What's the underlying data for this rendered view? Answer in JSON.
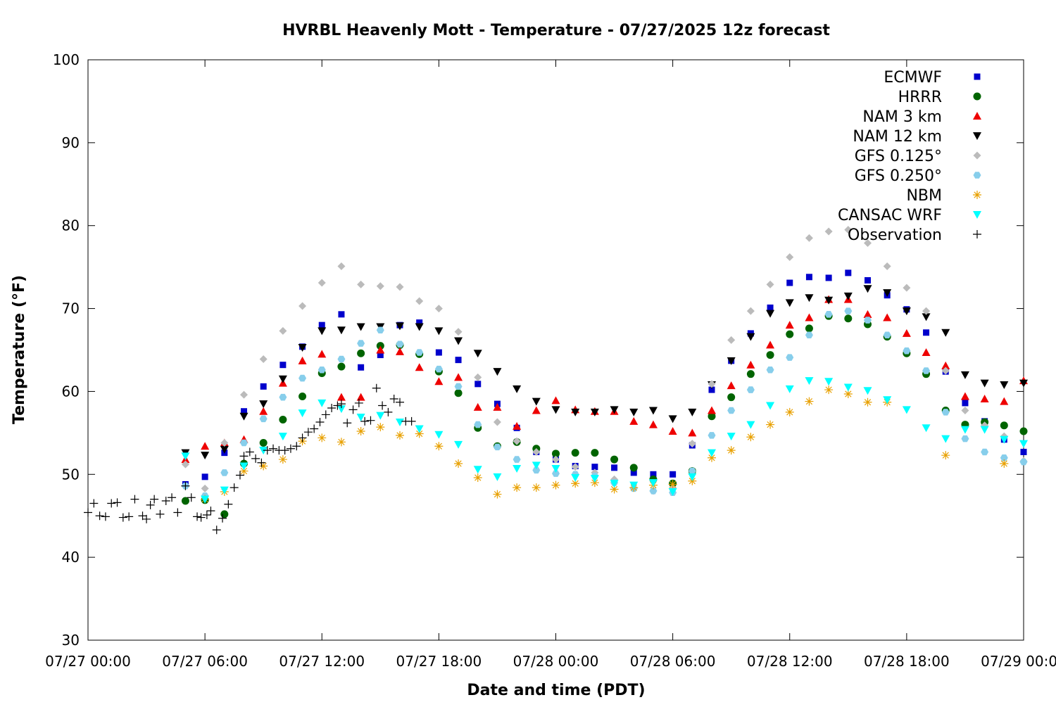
{
  "chart_data": {
    "type": "scatter",
    "title": "HVRBL Heavenly Mott - Temperature - 07/27/2025 12z forecast",
    "xlabel": "Date and time (PDT)",
    "ylabel": "Temperature (°F)",
    "xlim": [
      0,
      48
    ],
    "ylim": [
      30,
      100
    ],
    "x_units": "hours since 07/27 00:00 PDT",
    "x_ticks": [
      {
        "x": 0,
        "label": "07/27 00:00"
      },
      {
        "x": 6,
        "label": "07/27 06:00"
      },
      {
        "x": 12,
        "label": "07/27 12:00"
      },
      {
        "x": 18,
        "label": "07/27 18:00"
      },
      {
        "x": 24,
        "label": "07/28 00:00"
      },
      {
        "x": 30,
        "label": "07/28 06:00"
      },
      {
        "x": 36,
        "label": "07/28 12:00"
      },
      {
        "x": 42,
        "label": "07/28 18:00"
      },
      {
        "x": 48,
        "label": "07/29 00:00"
      }
    ],
    "y_ticks": [
      30,
      40,
      50,
      60,
      70,
      80,
      90,
      100
    ],
    "grid": false,
    "legend_position": "top-right",
    "series": [
      {
        "name": "ECMWF",
        "marker": "square",
        "color": "#0000cc",
        "x": [
          5,
          6,
          7,
          8,
          9,
          10,
          11,
          12,
          13,
          14,
          15,
          16,
          17,
          18,
          19,
          20,
          21,
          22,
          23,
          24,
          25,
          26,
          27,
          28,
          29,
          30,
          31,
          32,
          33,
          34,
          35,
          36,
          37,
          38,
          39,
          40,
          41,
          42,
          43,
          44,
          45,
          46,
          47,
          48
        ],
        "y": [
          48.8,
          49.7,
          52.6,
          57.6,
          60.6,
          63.2,
          65.4,
          68.0,
          69.3,
          62.9,
          64.4,
          68.0,
          68.3,
          64.7,
          63.8,
          60.9,
          58.5,
          55.6,
          52.7,
          51.8,
          51.0,
          50.9,
          50.8,
          50.2,
          50.0,
          50.0,
          53.5,
          60.2,
          63.7,
          67.0,
          70.1,
          73.1,
          73.8,
          73.7,
          74.3,
          73.4,
          71.6,
          69.9,
          67.1,
          62.4,
          58.6,
          56.4,
          54.2,
          52.7
        ]
      },
      {
        "name": "HRRR",
        "marker": "circle",
        "color": "#006400",
        "x": [
          5,
          6,
          7,
          8,
          9,
          10,
          11,
          12,
          13,
          14,
          15,
          16,
          17,
          18,
          19,
          20,
          21,
          22,
          23,
          24,
          25,
          26,
          27,
          28,
          29,
          30,
          31,
          32,
          33,
          34,
          35,
          36,
          37,
          38,
          39,
          40,
          41,
          42,
          43,
          44,
          45,
          46,
          47,
          48
        ],
        "y": [
          46.8,
          46.9,
          45.2,
          51.3,
          53.8,
          56.6,
          59.4,
          62.2,
          63.0,
          64.6,
          65.5,
          65.6,
          64.5,
          62.4,
          59.8,
          55.6,
          53.4,
          53.9,
          53.1,
          52.5,
          52.6,
          52.6,
          51.8,
          50.8,
          49.4,
          48.9,
          50.4,
          57.0,
          59.3,
          62.1,
          64.4,
          66.9,
          67.6,
          69.1,
          68.8,
          68.1,
          66.6,
          64.6,
          62.1,
          57.7,
          56.0,
          56.3,
          55.9,
          55.2
        ]
      },
      {
        "name": "NAM 3 km",
        "marker": "triangle-up",
        "color": "#ee0000",
        "x": [
          5,
          6,
          7,
          8,
          9,
          10,
          11,
          12,
          13,
          14,
          15,
          16,
          17,
          18,
          19,
          20,
          21,
          22,
          23,
          24,
          25,
          26,
          27,
          28,
          29,
          30,
          31,
          32,
          33,
          34,
          35,
          36,
          37,
          38,
          39,
          40,
          41,
          42,
          43,
          44,
          45,
          46,
          47,
          48
        ],
        "y": [
          51.8,
          53.4,
          53.8,
          54.2,
          57.6,
          61.0,
          63.7,
          64.5,
          59.3,
          59.3,
          65.0,
          64.8,
          62.9,
          61.2,
          61.7,
          58.1,
          58.1,
          55.8,
          57.7,
          58.9,
          57.8,
          57.6,
          57.6,
          56.4,
          56.0,
          55.2,
          55.0,
          57.7,
          60.7,
          63.2,
          65.6,
          68.0,
          68.9,
          71.1,
          71.1,
          69.3,
          68.9,
          67.0,
          64.7,
          63.1,
          59.4,
          59.1,
          58.8,
          61.3
        ]
      },
      {
        "name": "NAM 12 km",
        "marker": "triangle-down",
        "color": "#000000",
        "x": [
          5,
          6,
          7,
          8,
          9,
          10,
          11,
          12,
          13,
          14,
          15,
          16,
          17,
          18,
          19,
          20,
          21,
          22,
          23,
          24,
          25,
          26,
          27,
          28,
          29,
          30,
          31,
          32,
          33,
          34,
          35,
          36,
          37,
          38,
          39,
          40,
          41,
          42,
          43,
          44,
          45,
          46,
          47,
          48
        ],
        "y": [
          52.6,
          52.3,
          53.0,
          57.0,
          58.5,
          61.5,
          65.3,
          67.3,
          67.4,
          67.8,
          67.8,
          67.9,
          67.8,
          67.3,
          66.1,
          64.6,
          62.4,
          60.3,
          58.8,
          57.8,
          57.5,
          57.5,
          57.8,
          57.5,
          57.7,
          56.7,
          57.5,
          60.8,
          63.7,
          66.6,
          69.4,
          70.7,
          71.3,
          71.0,
          71.5,
          72.4,
          71.9,
          69.7,
          69.0,
          67.1,
          62.0,
          61.0,
          60.8,
          61.0
        ]
      },
      {
        "name": "GFS 0.125°",
        "marker": "diamond",
        "color": "#bbbbbb",
        "x": [
          5,
          6,
          7,
          8,
          9,
          10,
          11,
          12,
          13,
          14,
          15,
          16,
          17,
          18,
          19,
          20,
          21,
          22,
          23,
          24,
          25,
          26,
          27,
          28,
          29,
          30,
          31,
          32,
          33,
          34,
          35,
          36,
          37,
          38,
          39,
          40,
          41,
          42,
          43,
          44,
          45,
          46,
          47,
          48
        ],
        "y": [
          51.2,
          48.3,
          53.8,
          59.6,
          63.9,
          67.3,
          70.3,
          73.1,
          75.1,
          72.9,
          72.7,
          72.6,
          70.9,
          70.0,
          67.2,
          61.7,
          56.3,
          54.0,
          52.7,
          51.8,
          50.9,
          50.2,
          49.4,
          48.4,
          48.0,
          48.4,
          53.7,
          60.9,
          66.2,
          69.7,
          72.9,
          76.2,
          78.5,
          79.3,
          79.5,
          77.9,
          75.1,
          72.5,
          69.7,
          62.5,
          57.7,
          55.9,
          54.6,
          51.6
        ]
      },
      {
        "name": "GFS 0.250°",
        "marker": "hexagon",
        "color": "#87ceeb",
        "x": [
          5,
          6,
          7,
          8,
          9,
          10,
          11,
          12,
          13,
          14,
          15,
          16,
          17,
          18,
          19,
          20,
          21,
          22,
          23,
          24,
          25,
          26,
          27,
          28,
          29,
          30,
          31,
          32,
          33,
          34,
          35,
          36,
          37,
          38,
          39,
          40,
          41,
          42,
          43,
          44,
          45,
          46,
          47,
          48
        ],
        "y": [
          48.6,
          47.4,
          50.2,
          53.8,
          56.7,
          59.3,
          61.6,
          62.6,
          63.9,
          65.8,
          67.4,
          65.7,
          64.7,
          62.7,
          60.6,
          56.0,
          53.3,
          51.8,
          50.5,
          50.1,
          50.0,
          49.8,
          49.0,
          48.3,
          48.0,
          47.8,
          50.4,
          54.7,
          57.7,
          60.2,
          62.6,
          64.1,
          66.8,
          69.3,
          69.7,
          68.6,
          66.8,
          64.9,
          62.5,
          57.5,
          54.3,
          52.7,
          52.0,
          51.5
        ]
      },
      {
        "name": "NBM",
        "marker": "star",
        "color": "#e8a000",
        "x": [
          6,
          7,
          8,
          9,
          10,
          11,
          12,
          13,
          14,
          15,
          16,
          17,
          18,
          19,
          20,
          21,
          22,
          23,
          24,
          25,
          26,
          27,
          28,
          29,
          30,
          31,
          32,
          33,
          34,
          35,
          36,
          37,
          38,
          39,
          40,
          41,
          44,
          47
        ],
        "y": [
          47.0,
          47.9,
          50.4,
          51.0,
          51.8,
          54.0,
          54.4,
          53.9,
          55.2,
          55.7,
          54.7,
          54.9,
          53.4,
          51.3,
          49.6,
          47.6,
          48.4,
          48.4,
          48.7,
          48.9,
          49.0,
          48.2,
          48.4,
          48.7,
          48.8,
          49.2,
          52.0,
          52.9,
          54.5,
          56.0,
          57.5,
          58.8,
          60.2,
          59.7,
          58.7,
          58.7,
          52.3,
          51.3
        ]
      },
      {
        "name": "CANSAC WRF",
        "marker": "triangle-down",
        "color": "#00ffff",
        "x": [
          5,
          6,
          7,
          8,
          9,
          10,
          11,
          12,
          13,
          14,
          15,
          16,
          17,
          18,
          19,
          20,
          21,
          22,
          23,
          24,
          25,
          26,
          27,
          28,
          29,
          30,
          31,
          32,
          33,
          34,
          35,
          36,
          37,
          38,
          39,
          40,
          41,
          42,
          43,
          44,
          45,
          46,
          47,
          48
        ],
        "y": [
          52.2,
          47.0,
          48.1,
          51.0,
          52.9,
          54.6,
          57.4,
          58.6,
          57.9,
          56.9,
          57.1,
          56.3,
          55.5,
          54.8,
          53.6,
          50.6,
          49.7,
          50.7,
          51.1,
          50.7,
          49.6,
          49.5,
          48.9,
          48.7,
          49.0,
          47.9,
          49.7,
          52.6,
          54.6,
          56.0,
          58.3,
          60.3,
          61.3,
          61.2,
          60.5,
          60.1,
          59.0,
          57.8,
          55.6,
          54.3,
          55.4,
          55.4,
          54.2,
          53.7
        ]
      },
      {
        "name": "Observation",
        "marker": "plus",
        "color": "#000000",
        "x": [
          0.0,
          0.3,
          0.6,
          0.9,
          1.2,
          1.5,
          1.8,
          2.1,
          2.4,
          2.8,
          3.0,
          3.2,
          3.4,
          3.7,
          4.0,
          4.3,
          4.6,
          5.0,
          5.3,
          5.6,
          5.8,
          6.1,
          6.3,
          6.6,
          6.9,
          7.2,
          7.5,
          7.8,
          8.0,
          8.3,
          8.6,
          8.9,
          9.2,
          9.5,
          9.8,
          10.1,
          10.4,
          10.7,
          11.0,
          11.3,
          11.6,
          11.9,
          12.2,
          12.5,
          12.8,
          13.0,
          13.3,
          13.6,
          13.9,
          14.2,
          14.5,
          14.8,
          15.1,
          15.4,
          15.7,
          16.0,
          16.3,
          16.6
        ],
        "y": [
          45.4,
          46.5,
          45.0,
          44.9,
          46.5,
          46.6,
          44.8,
          44.9,
          47.0,
          45.0,
          44.6,
          46.3,
          47.0,
          45.2,
          46.8,
          47.2,
          45.4,
          48.6,
          47.2,
          44.9,
          44.8,
          45.1,
          45.6,
          43.3,
          44.7,
          46.4,
          48.4,
          49.9,
          52.2,
          52.7,
          51.9,
          51.4,
          52.9,
          53.1,
          52.9,
          52.9,
          53.1,
          53.4,
          54.4,
          55.1,
          55.5,
          56.3,
          57.2,
          58.0,
          58.3,
          58.5,
          56.2,
          57.8,
          58.6,
          56.4,
          56.5,
          60.4,
          58.3,
          57.5,
          59.1,
          58.7,
          56.4,
          56.4
        ]
      }
    ]
  }
}
